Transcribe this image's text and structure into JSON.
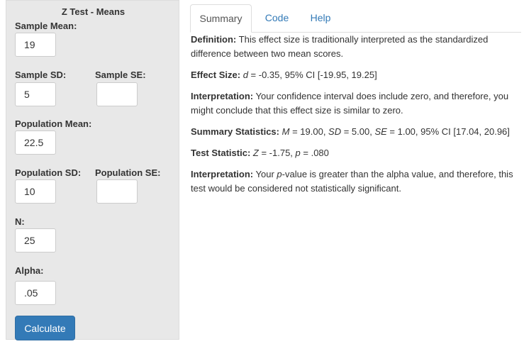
{
  "sidebar": {
    "title": "Z Test - Means",
    "sample_mean": {
      "label": "Sample Mean:",
      "value": "19"
    },
    "sample_sd": {
      "label": "Sample SD:",
      "value": "5"
    },
    "sample_se": {
      "label": "Sample SE:",
      "value": ""
    },
    "population_mean": {
      "label": "Population Mean:",
      "value": "22.5"
    },
    "population_sd": {
      "label": "Population SD:",
      "value": "10"
    },
    "population_se": {
      "label": "Population SE:",
      "value": ""
    },
    "n": {
      "label": "N:",
      "value": "25"
    },
    "alpha": {
      "label": "Alpha:",
      "value": ".05"
    },
    "calculate_label": "Calculate"
  },
  "tabs": [
    {
      "label": "Summary"
    },
    {
      "label": "Code"
    },
    {
      "label": "Help"
    }
  ],
  "summary": {
    "definition": {
      "label": "Definition:",
      "text": "This effect size is traditionally interpreted as the standardized difference between two mean scores."
    },
    "effect_size": {
      "label": "Effect Size:",
      "d_symbol": "d",
      "text": " = -0.35, 95% CI [-19.95, 19.25]"
    },
    "interpretation1": {
      "label": "Interpretation:",
      "text": "Your confidence interval does include zero, and therefore, you might conclude that this effect size is similar to zero."
    },
    "summary_statistics": {
      "label": "Summary Statistics:",
      "m_symbol": "M",
      "m_text": " = 19.00, ",
      "sd_symbol": "SD",
      "sd_text": " = 5.00, ",
      "se_symbol": "SE",
      "se_text": " = 1.00, 95% CI [17.04, 20.96]"
    },
    "test_statistic": {
      "label": "Test Statistic:",
      "z_symbol": "Z",
      "z_text": " = -1.75, ",
      "p_symbol": "p",
      "p_text": " = .080"
    },
    "interpretation2": {
      "label": "Interpretation:",
      "text_before": "Your ",
      "p_word": "p",
      "text_after": "-value is greater than the alpha value, and therefore, this test would be considered not statistically significant."
    }
  }
}
